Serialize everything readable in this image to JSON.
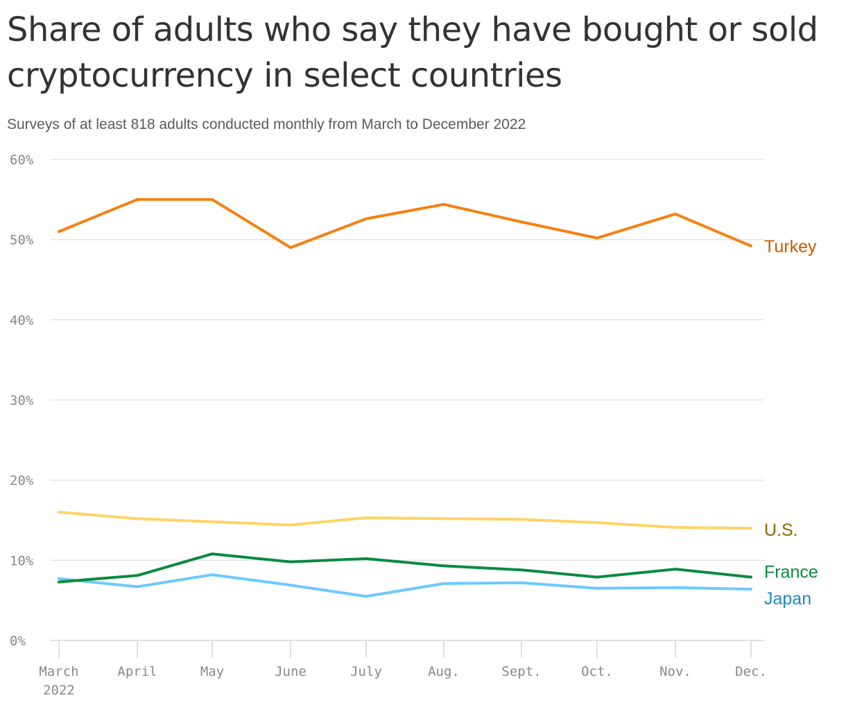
{
  "chart_data": {
    "type": "line",
    "title": "Share of adults who say they have bought or sold cryptocurrency in select countries",
    "subtitle": "Surveys of at least 818 adults conducted monthly from March to December 2022",
    "categories": [
      "March\n2022",
      "April",
      "May",
      "June",
      "July",
      "Aug.",
      "Sept.",
      "Oct.",
      "Nov.",
      "Dec."
    ],
    "ylim": [
      0,
      60
    ],
    "yticks": [
      0,
      10,
      20,
      30,
      40,
      50,
      60
    ],
    "ytick_labels": [
      "0%",
      "10%",
      "20%",
      "30%",
      "40%",
      "50%",
      "60%"
    ],
    "grid": true,
    "series": [
      {
        "name": "Turkey",
        "color": "#f77f0f",
        "label_color": "#c95a00",
        "values": [
          51,
          55,
          55,
          49,
          52.6,
          54.4,
          52.2,
          50.2,
          53.2,
          49.2
        ]
      },
      {
        "name": "U.S.",
        "color": "#ffd466",
        "label_color": "#8a6a00",
        "values": [
          16,
          15.2,
          14.8,
          14.4,
          15.3,
          15.2,
          15.1,
          14.7,
          14.1,
          14.0
        ]
      },
      {
        "name": "France",
        "color": "#0a8a3e",
        "label_color": "#0a8a3e",
        "values": [
          7.3,
          8.1,
          10.8,
          9.8,
          10.2,
          9.3,
          8.8,
          7.9,
          8.9,
          7.9
        ]
      },
      {
        "name": "Japan",
        "color": "#6cc8ff",
        "label_color": "#1a8ac0",
        "values": [
          7.7,
          6.7,
          8.2,
          6.9,
          5.5,
          7.1,
          7.2,
          6.5,
          6.6,
          6.4
        ]
      }
    ]
  }
}
